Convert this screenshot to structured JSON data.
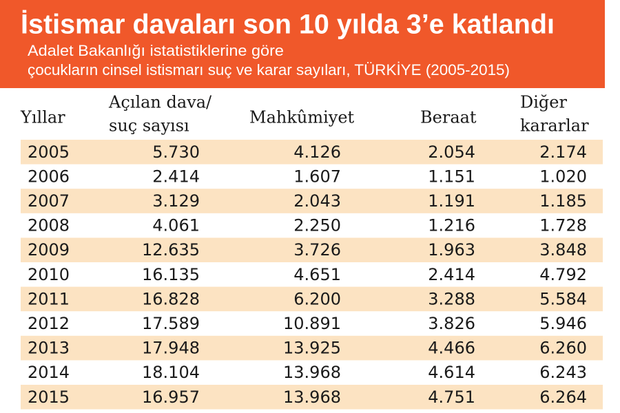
{
  "header": {
    "title": "İstismar davaları  son 10 yılda 3’e katlandı",
    "subtitle": [
      "Adalet Bakanlığı istatistiklerine göre",
      "çocukların cinsel istismarı suç ve karar sayıları, TÜRKİYE (2005-2015)"
    ]
  },
  "table": {
    "columns": [
      [
        "Yıllar"
      ],
      [
        "Açılan dava/",
        "suç sayısı"
      ],
      [
        "Mahkûmiyet"
      ],
      [
        "Beraat"
      ],
      [
        "Diğer",
        "kararlar"
      ]
    ],
    "rows": [
      [
        "2005",
        "5.730",
        "4.126",
        "2.054",
        "2.174"
      ],
      [
        "2006",
        "2.414",
        "1.607",
        "1.151",
        "1.020"
      ],
      [
        "2007",
        "3.129",
        "2.043",
        "1.191",
        "1.185"
      ],
      [
        "2008",
        "4.061",
        "2.250",
        "1.216",
        "1.728"
      ],
      [
        "2009",
        "12.635",
        "3.726",
        "1.963",
        "3.848"
      ],
      [
        "2010",
        "16.135",
        "4.651",
        "2.414",
        "4.792"
      ],
      [
        "2011",
        "16.828",
        "6.200",
        "3.288",
        "5.584"
      ],
      [
        "2012",
        "17.589",
        "10.891",
        "3.826",
        "5.946"
      ],
      [
        "2013",
        "17.948",
        "13.925",
        "4.466",
        "6.260"
      ],
      [
        "2014",
        "18.104",
        "13.968",
        "4.614",
        "6.243"
      ],
      [
        "2015",
        "16.957",
        "13.968",
        "4.751",
        "6.264"
      ]
    ]
  }
}
